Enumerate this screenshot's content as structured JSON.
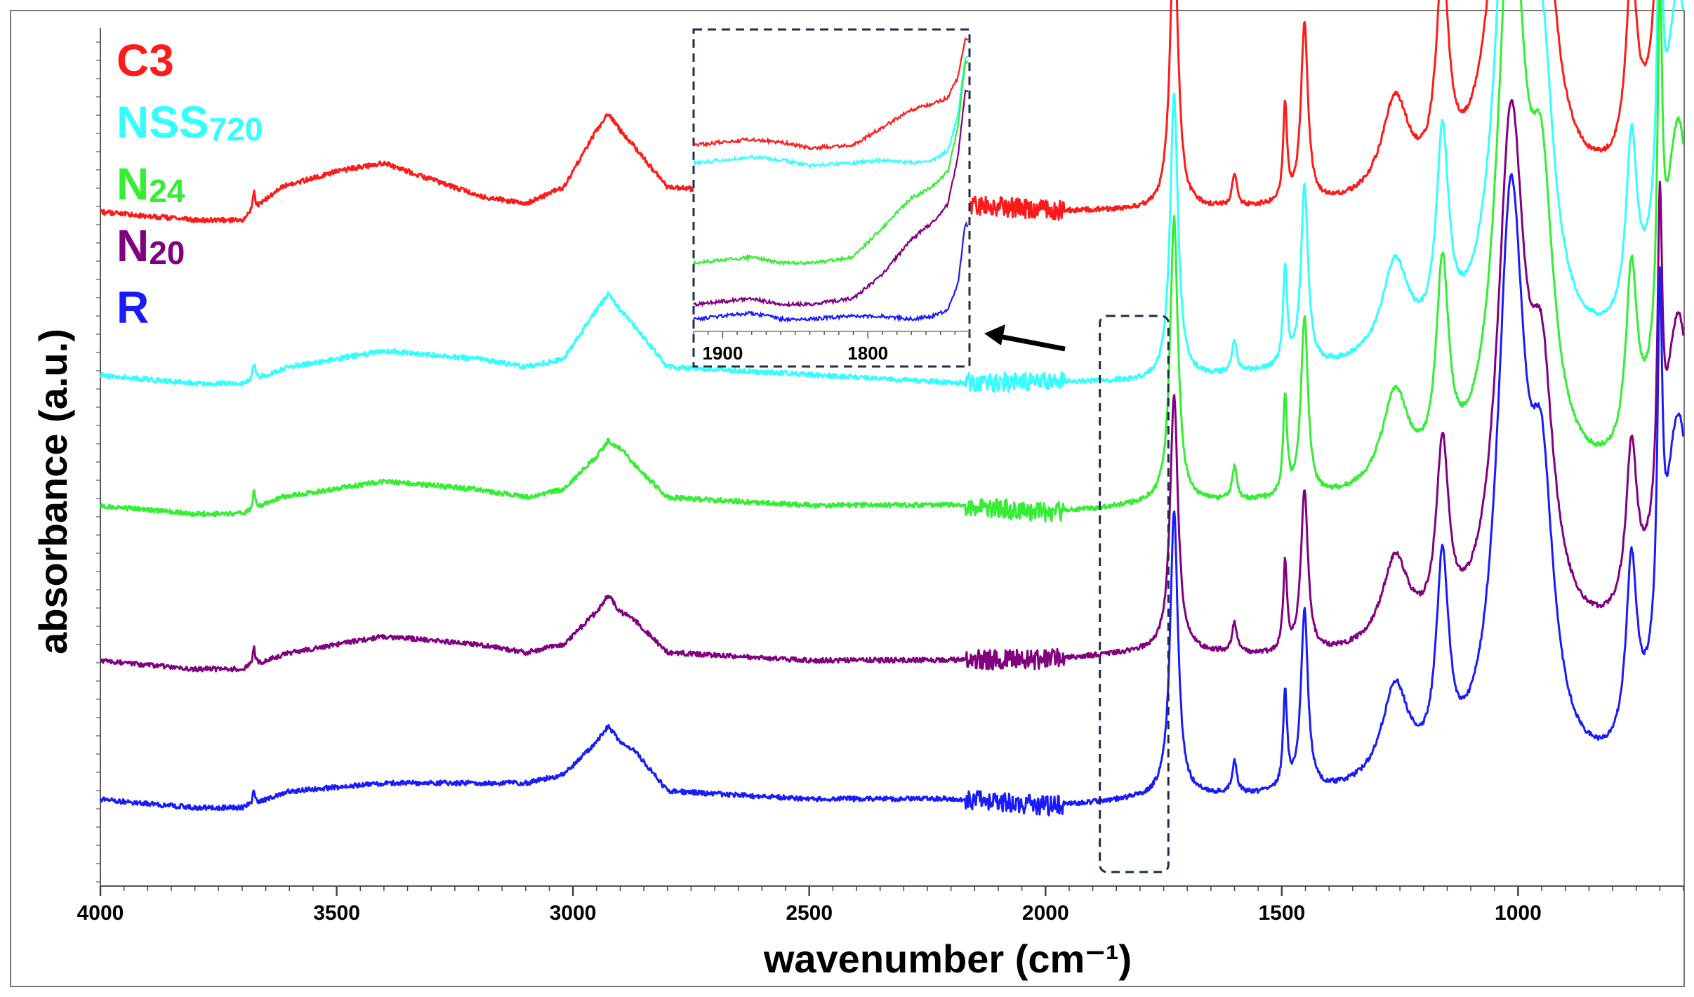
{
  "chart_data": {
    "type": "line",
    "title": "",
    "xlabel": "wavenumber (cm⁻¹)",
    "ylabel": "absorbance (a.u.)",
    "xlim": [
      4000,
      650
    ],
    "x_reversed": true,
    "x_ticks": [
      4000,
      3500,
      3000,
      2500,
      2000,
      1500,
      1000
    ],
    "grid": false,
    "legend_position": "top-left",
    "series": [
      {
        "name": "C3",
        "label_main": "C3",
        "label_sub": "",
        "color": "#ff1a1a",
        "baseline": 0.8,
        "peak_scale": 1.0,
        "oh_band": 0.04,
        "points": [
          [
            4000,
            0.8
          ],
          [
            3800,
            0.79
          ],
          [
            3700,
            0.79
          ],
          [
            3620,
            0.83
          ],
          [
            3500,
            0.85
          ],
          [
            3400,
            0.86
          ],
          [
            3200,
            0.82
          ],
          [
            3100,
            0.81
          ],
          [
            3020,
            0.83
          ],
          [
            2950,
            0.9
          ],
          [
            2925,
            0.92
          ],
          [
            2900,
            0.9
          ],
          [
            2870,
            0.88
          ],
          [
            2800,
            0.83
          ],
          [
            2500,
            0.82
          ],
          [
            2200,
            0.81
          ],
          [
            2000,
            0.8
          ],
          [
            1760,
            0.8
          ],
          [
            1500,
            0.8
          ],
          [
            1000,
            0.8
          ],
          [
            700,
            0.8
          ],
          [
            650,
            0.8
          ]
        ]
      },
      {
        "name": "NSS720",
        "label_main": "NSS",
        "label_sub": "720",
        "color": "#33ffff",
        "baseline": 0.6,
        "peak_scale": 1.0,
        "oh_band": 0.035,
        "points": [
          [
            4000,
            0.6
          ],
          [
            3800,
            0.59
          ],
          [
            3700,
            0.59
          ],
          [
            3600,
            0.61
          ],
          [
            3400,
            0.63
          ],
          [
            3200,
            0.62
          ],
          [
            3100,
            0.61
          ],
          [
            3020,
            0.62
          ],
          [
            2950,
            0.68
          ],
          [
            2925,
            0.7
          ],
          [
            2900,
            0.68
          ],
          [
            2870,
            0.66
          ],
          [
            2800,
            0.61
          ],
          [
            2500,
            0.6
          ],
          [
            2200,
            0.59
          ],
          [
            2000,
            0.59
          ],
          [
            1760,
            0.59
          ],
          [
            1500,
            0.6
          ],
          [
            1000,
            0.6
          ],
          [
            700,
            0.6
          ],
          [
            650,
            0.6
          ]
        ]
      },
      {
        "name": "N24",
        "label_main": "N",
        "label_sub": "24",
        "color": "#33ee33",
        "baseline": 0.44,
        "peak_scale": 1.0,
        "oh_band": 0.035,
        "points": [
          [
            4000,
            0.44
          ],
          [
            3800,
            0.43
          ],
          [
            3700,
            0.43
          ],
          [
            3620,
            0.45
          ],
          [
            3400,
            0.47
          ],
          [
            3200,
            0.46
          ],
          [
            3100,
            0.45
          ],
          [
            3020,
            0.46
          ],
          [
            2950,
            0.5
          ],
          [
            2925,
            0.52
          ],
          [
            2900,
            0.51
          ],
          [
            2870,
            0.49
          ],
          [
            2800,
            0.45
          ],
          [
            2500,
            0.44
          ],
          [
            2200,
            0.44
          ],
          [
            2000,
            0.43
          ],
          [
            1760,
            0.44
          ],
          [
            1500,
            0.44
          ],
          [
            1000,
            0.44
          ],
          [
            700,
            0.44
          ],
          [
            650,
            0.44
          ]
        ]
      },
      {
        "name": "N20",
        "label_main": "N",
        "label_sub": "20",
        "color": "#800080",
        "baseline": 0.25,
        "peak_scale": 0.9,
        "oh_band": 0.035,
        "points": [
          [
            4000,
            0.25
          ],
          [
            3800,
            0.24
          ],
          [
            3700,
            0.24
          ],
          [
            3600,
            0.26
          ],
          [
            3400,
            0.28
          ],
          [
            3200,
            0.27
          ],
          [
            3100,
            0.26
          ],
          [
            3020,
            0.27
          ],
          [
            2950,
            0.31
          ],
          [
            2925,
            0.33
          ],
          [
            2900,
            0.31
          ],
          [
            2870,
            0.3
          ],
          [
            2800,
            0.26
          ],
          [
            2500,
            0.25
          ],
          [
            2200,
            0.25
          ],
          [
            2000,
            0.25
          ],
          [
            1760,
            0.26
          ],
          [
            1500,
            0.25
          ],
          [
            1000,
            0.25
          ],
          [
            700,
            0.25
          ],
          [
            650,
            0.25
          ]
        ]
      },
      {
        "name": "R",
        "label_main": "R",
        "label_sub": "",
        "color": "#1a1aff",
        "baseline": 0.08,
        "peak_scale": 1.0,
        "oh_band": 0.03,
        "points": [
          [
            4000,
            0.08
          ],
          [
            3800,
            0.07
          ],
          [
            3700,
            0.07
          ],
          [
            3600,
            0.09
          ],
          [
            3400,
            0.1
          ],
          [
            3200,
            0.1
          ],
          [
            3100,
            0.1
          ],
          [
            3020,
            0.11
          ],
          [
            2950,
            0.15
          ],
          [
            2925,
            0.17
          ],
          [
            2900,
            0.15
          ],
          [
            2870,
            0.14
          ],
          [
            2800,
            0.09
          ],
          [
            2500,
            0.08
          ],
          [
            2200,
            0.08
          ],
          [
            2000,
            0.07
          ],
          [
            1760,
            0.08
          ],
          [
            1500,
            0.08
          ],
          [
            1000,
            0.08
          ],
          [
            700,
            0.08
          ],
          [
            650,
            0.08
          ]
        ]
      }
    ],
    "fingerprint_peaks": [
      {
        "x": 1728,
        "height": 0.35,
        "width": 10
      },
      {
        "x": 1600,
        "height": 0.04,
        "width": 6
      },
      {
        "x": 1493,
        "height": 0.12,
        "width": 5
      },
      {
        "x": 1452,
        "height": 0.22,
        "width": 9
      },
      {
        "x": 1260,
        "height": 0.12,
        "width": 35
      },
      {
        "x": 1160,
        "height": 0.25,
        "width": 16
      },
      {
        "x": 1015,
        "height": 0.7,
        "width": 35
      },
      {
        "x": 950,
        "height": 0.3,
        "width": 30
      },
      {
        "x": 760,
        "height": 0.22,
        "width": 14
      },
      {
        "x": 700,
        "height": 0.4,
        "width": 6
      },
      {
        "x": 660,
        "height": 0.45,
        "width": 40
      }
    ],
    "inset": {
      "x_ticks": [
        1900,
        1800
      ],
      "xlim": [
        1920,
        1730
      ],
      "source_region": [
        1885,
        1740
      ],
      "series": [
        {
          "name": "C3",
          "color": "#ff1a1a",
          "points": [
            [
              1920,
              0.62
            ],
            [
              1880,
              0.64
            ],
            [
              1860,
              0.63
            ],
            [
              1840,
              0.61
            ],
            [
              1810,
              0.62
            ],
            [
              1790,
              0.68
            ],
            [
              1770,
              0.74
            ],
            [
              1755,
              0.76
            ],
            [
              1745,
              0.78
            ],
            [
              1738,
              0.85
            ],
            [
              1733,
              0.98
            ]
          ]
        },
        {
          "name": "NSS720",
          "color": "#33ffff",
          "points": [
            [
              1920,
              0.56
            ],
            [
              1880,
              0.58
            ],
            [
              1860,
              0.57
            ],
            [
              1840,
              0.55
            ],
            [
              1810,
              0.56
            ],
            [
              1790,
              0.57
            ],
            [
              1770,
              0.56
            ],
            [
              1755,
              0.57
            ],
            [
              1745,
              0.6
            ],
            [
              1738,
              0.72
            ],
            [
              1733,
              0.92
            ]
          ]
        },
        {
          "name": "N24",
          "color": "#33ee33",
          "points": [
            [
              1920,
              0.22
            ],
            [
              1880,
              0.24
            ],
            [
              1860,
              0.22
            ],
            [
              1840,
              0.22
            ],
            [
              1810,
              0.24
            ],
            [
              1790,
              0.34
            ],
            [
              1770,
              0.44
            ],
            [
              1755,
              0.48
            ],
            [
              1745,
              0.53
            ],
            [
              1738,
              0.68
            ],
            [
              1733,
              0.9
            ]
          ]
        },
        {
          "name": "N20",
          "color": "#800080",
          "points": [
            [
              1920,
              0.08
            ],
            [
              1880,
              0.1
            ],
            [
              1860,
              0.08
            ],
            [
              1840,
              0.08
            ],
            [
              1810,
              0.1
            ],
            [
              1790,
              0.18
            ],
            [
              1770,
              0.3
            ],
            [
              1755,
              0.36
            ],
            [
              1745,
              0.42
            ],
            [
              1738,
              0.58
            ],
            [
              1733,
              0.8
            ]
          ]
        },
        {
          "name": "R",
          "color": "#1a1aff",
          "points": [
            [
              1920,
              0.03
            ],
            [
              1880,
              0.05
            ],
            [
              1860,
              0.03
            ],
            [
              1840,
              0.03
            ],
            [
              1810,
              0.04
            ],
            [
              1790,
              0.04
            ],
            [
              1770,
              0.03
            ],
            [
              1755,
              0.04
            ],
            [
              1745,
              0.06
            ],
            [
              1738,
              0.15
            ],
            [
              1733,
              0.35
            ]
          ]
        }
      ]
    }
  }
}
